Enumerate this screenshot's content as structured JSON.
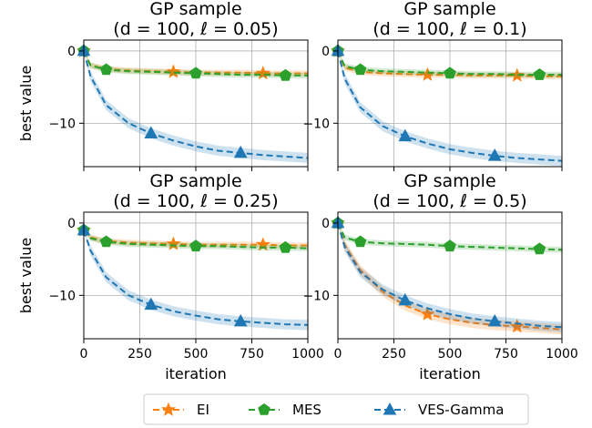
{
  "chart_data": [
    {
      "type": "line",
      "title": [
        "GP sample",
        "(d = 100, ℓ = 0.05)"
      ],
      "ylabel": "best value",
      "xlabel": "",
      "xlim": [
        0,
        1000
      ],
      "ylim": [
        -16,
        1.5
      ],
      "xticks": [
        0,
        250,
        500,
        750,
        1000
      ],
      "yticks": [
        0,
        -10
      ],
      "grid": true,
      "series": [
        {
          "name": "EI",
          "x": [
            0,
            30,
            100,
            200,
            300,
            400,
            500,
            600,
            700,
            800,
            900,
            1000
          ],
          "y": [
            0,
            -2.0,
            -2.5,
            -2.7,
            -2.8,
            -2.9,
            -3.0,
            -3.0,
            -3.0,
            -3.1,
            -3.1,
            -3.1
          ],
          "markers_x": [
            400,
            800
          ]
        },
        {
          "name": "MES",
          "x": [
            0,
            30,
            100,
            200,
            300,
            400,
            500,
            600,
            700,
            800,
            900,
            1000
          ],
          "y": [
            0,
            -2.0,
            -2.6,
            -2.8,
            -2.9,
            -3.0,
            -3.1,
            -3.2,
            -3.3,
            -3.3,
            -3.4,
            -3.4
          ],
          "markers_x": [
            100,
            500,
            900
          ]
        },
        {
          "name": "VES-Gamma",
          "x": [
            0,
            30,
            100,
            200,
            300,
            400,
            500,
            600,
            700,
            800,
            900,
            1000
          ],
          "y": [
            0,
            -3.5,
            -7.5,
            -10.0,
            -11.4,
            -12.4,
            -13.2,
            -13.8,
            -14.1,
            -14.4,
            -14.6,
            -14.8
          ],
          "markers_x": [
            300,
            700
          ]
        }
      ]
    },
    {
      "type": "line",
      "title": [
        "GP sample",
        "(d = 100, ℓ = 0.1)"
      ],
      "ylabel": "",
      "xlabel": "",
      "xlim": [
        0,
        1000
      ],
      "ylim": [
        -16,
        1.5
      ],
      "xticks": [
        0,
        250,
        500,
        750,
        1000
      ],
      "yticks": [
        0,
        -10
      ],
      "grid": true,
      "series": [
        {
          "name": "EI",
          "x": [
            0,
            30,
            100,
            200,
            300,
            400,
            500,
            600,
            700,
            800,
            900,
            1000
          ],
          "y": [
            0,
            -2.3,
            -2.9,
            -3.1,
            -3.2,
            -3.3,
            -3.3,
            -3.4,
            -3.4,
            -3.4,
            -3.5,
            -3.5
          ],
          "markers_x": [
            400,
            800
          ]
        },
        {
          "name": "MES",
          "x": [
            0,
            30,
            100,
            200,
            300,
            400,
            500,
            600,
            700,
            800,
            900,
            1000
          ],
          "y": [
            0,
            -2.1,
            -2.6,
            -2.8,
            -2.9,
            -3.0,
            -3.1,
            -3.2,
            -3.2,
            -3.3,
            -3.3,
            -3.3
          ],
          "markers_x": [
            100,
            500,
            900
          ]
        },
        {
          "name": "VES-Gamma",
          "x": [
            0,
            30,
            100,
            200,
            300,
            400,
            500,
            600,
            700,
            800,
            900,
            1000
          ],
          "y": [
            0,
            -3.8,
            -7.8,
            -10.4,
            -11.8,
            -12.8,
            -13.6,
            -14.1,
            -14.5,
            -14.8,
            -15.0,
            -15.2
          ],
          "markers_x": [
            300,
            700
          ]
        }
      ]
    },
    {
      "type": "line",
      "title": [
        "GP sample",
        "(d = 100, ℓ = 0.25)"
      ],
      "ylabel": "best value",
      "xlabel": "iteration",
      "xlim": [
        0,
        1000
      ],
      "ylim": [
        -16,
        1.5
      ],
      "xticks": [
        0,
        250,
        500,
        750,
        1000
      ],
      "yticks": [
        0,
        -10
      ],
      "grid": true,
      "series": [
        {
          "name": "EI",
          "x": [
            0,
            30,
            100,
            200,
            300,
            400,
            500,
            600,
            700,
            800,
            900,
            1000
          ],
          "y": [
            -1,
            -2.0,
            -2.5,
            -2.7,
            -2.8,
            -2.9,
            -3.0,
            -3.0,
            -3.0,
            -3.0,
            -3.1,
            -3.1
          ],
          "markers_x": [
            400,
            800
          ]
        },
        {
          "name": "MES",
          "x": [
            0,
            30,
            100,
            200,
            300,
            400,
            500,
            600,
            700,
            800,
            900,
            1000
          ],
          "y": [
            -1,
            -2.1,
            -2.6,
            -2.9,
            -3.0,
            -3.1,
            -3.2,
            -3.2,
            -3.3,
            -3.4,
            -3.4,
            -3.5
          ],
          "markers_x": [
            100,
            500,
            900
          ]
        },
        {
          "name": "VES-Gamma",
          "x": [
            0,
            30,
            100,
            200,
            300,
            400,
            500,
            600,
            700,
            800,
            900,
            1000
          ],
          "y": [
            -1,
            -3.8,
            -7.5,
            -10.0,
            -11.3,
            -12.2,
            -12.8,
            -13.3,
            -13.6,
            -13.8,
            -14.0,
            -14.1
          ],
          "markers_x": [
            300,
            700
          ]
        }
      ]
    },
    {
      "type": "line",
      "title": [
        "GP sample",
        "(d = 100, ℓ = 0.5)"
      ],
      "ylabel": "",
      "xlabel": "iteration",
      "xlim": [
        0,
        1000
      ],
      "ylim": [
        -16,
        1.5
      ],
      "xticks": [
        0,
        250,
        500,
        750,
        1000
      ],
      "yticks": [
        0,
        -10
      ],
      "grid": true,
      "series": [
        {
          "name": "EI",
          "x": [
            0,
            30,
            100,
            200,
            300,
            400,
            500,
            600,
            700,
            800,
            900,
            1000
          ],
          "y": [
            0,
            -3.0,
            -6.5,
            -9.5,
            -11.4,
            -12.6,
            -13.3,
            -13.8,
            -14.1,
            -14.3,
            -14.5,
            -14.7
          ],
          "markers_x": [
            400,
            800
          ]
        },
        {
          "name": "MES",
          "x": [
            0,
            30,
            100,
            200,
            300,
            400,
            500,
            600,
            700,
            800,
            900,
            1000
          ],
          "y": [
            0,
            -2.0,
            -2.6,
            -2.8,
            -2.9,
            -3.0,
            -3.2,
            -3.3,
            -3.4,
            -3.5,
            -3.6,
            -3.7
          ],
          "markers_x": [
            100,
            500,
            900
          ]
        },
        {
          "name": "VES-Gamma",
          "x": [
            0,
            30,
            100,
            200,
            300,
            400,
            500,
            600,
            700,
            800,
            900,
            1000
          ],
          "y": [
            0,
            -3.3,
            -6.8,
            -9.2,
            -10.7,
            -11.8,
            -12.6,
            -13.2,
            -13.6,
            -13.9,
            -14.2,
            -14.4
          ],
          "markers_x": [
            300,
            700
          ]
        }
      ]
    }
  ],
  "legend": {
    "placement": "bottom-center",
    "entries": [
      {
        "name": "EI",
        "color": "#ff7f0e",
        "marker": "star"
      },
      {
        "name": "MES",
        "color": "#2ca02c",
        "marker": "pentagon"
      },
      {
        "name": "VES-Gamma",
        "color": "#1f77b4",
        "marker": "triangle"
      }
    ]
  },
  "colors": {
    "EI": "#ff7f0e",
    "MES": "#2ca02c",
    "VES-Gamma": "#1f77b4",
    "grid": "#b0b0b0"
  }
}
